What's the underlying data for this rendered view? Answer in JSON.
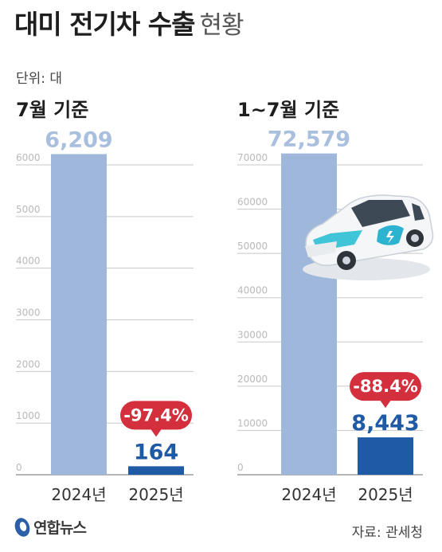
{
  "header": {
    "title_bold": "대미 전기차 수출",
    "title_light": "현황",
    "unit": "단위: 대"
  },
  "colors": {
    "bar_2024": "#9fb7da",
    "bar_2025": "#1f5aa6",
    "value_2024": "#a9bfde",
    "value_2025": "#1f5aa6",
    "badge": "#d32f3c",
    "grid": "#c8c8c8",
    "axis_text": "#b9b9b9"
  },
  "chart_data": [
    {
      "type": "bar",
      "title": "7월 기준",
      "categories": [
        "2024년",
        "2025년"
      ],
      "values": [
        6209,
        164
      ],
      "value_labels": [
        "6,209",
        "164"
      ],
      "change_label": "-97.4%",
      "yticks": [
        0,
        1000,
        2000,
        3000,
        4000,
        5000,
        6000
      ],
      "ylim": [
        0,
        6000
      ],
      "grid": true
    },
    {
      "type": "bar",
      "title": "1~7월 기준",
      "categories": [
        "2024년",
        "2025년"
      ],
      "values": [
        72579,
        8443
      ],
      "value_labels": [
        "72,579",
        "8,443"
      ],
      "change_label": "-88.4%",
      "yticks": [
        0,
        10000,
        20000,
        30000,
        40000,
        50000,
        60000,
        70000
      ],
      "ylim": [
        0,
        70000
      ],
      "grid": true
    }
  ],
  "footer": {
    "brand": "연합뉴스",
    "source": "자료: 관세청"
  },
  "icons": {
    "logo": "yonhap-logo-icon",
    "car": "electric-car-icon"
  }
}
